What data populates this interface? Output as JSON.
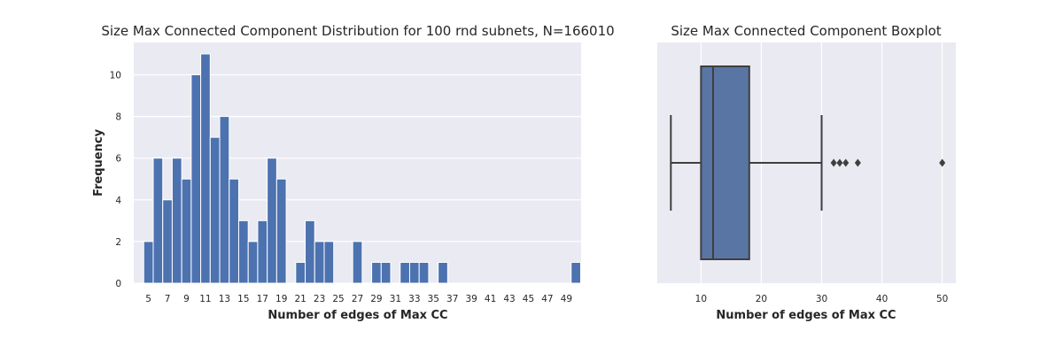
{
  "chart_data": [
    {
      "type": "bar",
      "title": "Size Max Connected Component Distribution for 100 rnd subnets, N=166010",
      "xlabel": "Number of edges of Max CC",
      "ylabel": "Frequency",
      "x_ticks": [
        5,
        7,
        9,
        11,
        13,
        15,
        17,
        19,
        21,
        23,
        25,
        27,
        29,
        31,
        33,
        35,
        37,
        39,
        41,
        43,
        45,
        47,
        49
      ],
      "y_ticks": [
        0,
        2,
        4,
        6,
        8,
        10
      ],
      "ylim": [
        0,
        11.55
      ],
      "bins": [
        5,
        6,
        7,
        8,
        9,
        10,
        11,
        12,
        13,
        14,
        15,
        16,
        17,
        18,
        19,
        20,
        21,
        22,
        23,
        24,
        25,
        26,
        27,
        28,
        29,
        30,
        31,
        32,
        33,
        34,
        35,
        36,
        37,
        38,
        39,
        40,
        41,
        42,
        43,
        44,
        45,
        46,
        47,
        48,
        49,
        50
      ],
      "values": [
        2,
        6,
        4,
        6,
        5,
        10,
        11,
        7,
        8,
        5,
        3,
        2,
        3,
        6,
        5,
        0,
        1,
        3,
        2,
        2,
        0,
        0,
        2,
        0,
        1,
        1,
        0,
        1,
        1,
        1,
        0,
        1,
        0,
        0,
        0,
        0,
        0,
        0,
        0,
        0,
        0,
        0,
        0,
        0,
        0,
        1
      ],
      "bar_color": "#4c72b0",
      "grid": true
    },
    {
      "type": "boxplot",
      "title": "Size Max Connected Component Boxplot",
      "xlabel": "Number of edges of Max CC",
      "x_ticks": [
        10,
        20,
        30,
        40,
        50
      ],
      "xlim": [
        2.75,
        52.25
      ],
      "whisker_low": 5,
      "q1": 10,
      "median": 12,
      "q3": 18,
      "whisker_high": 30,
      "outliers": [
        32,
        33,
        34,
        36,
        50
      ],
      "box_color": "#5975a4",
      "grid": true
    }
  ],
  "colors": {
    "plot_background": "#eaeaf2",
    "grid": "#ffffff",
    "text": "#262626",
    "line": "#3f3f3f"
  }
}
